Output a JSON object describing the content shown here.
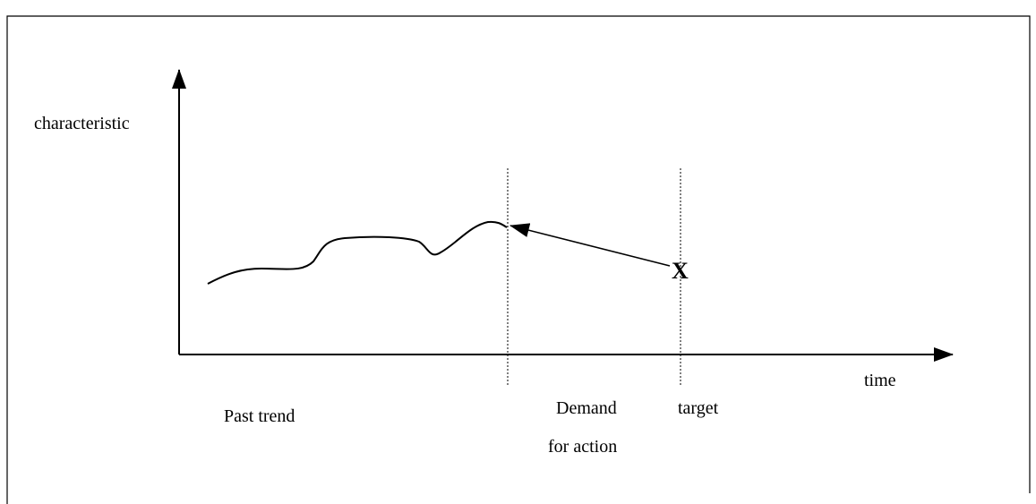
{
  "labels": {
    "y_axis": "characteristic",
    "x_axis": "time",
    "past": "Past trend",
    "demand": [
      "Demand",
      "for action"
    ],
    "target": "target",
    "marker": "X"
  }
}
